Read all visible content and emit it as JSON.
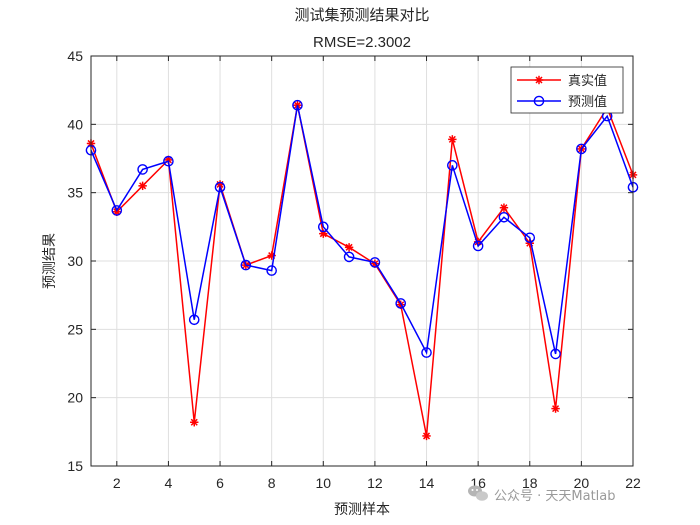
{
  "chart_data": {
    "type": "line",
    "title": "测试集预测结果对比",
    "subtitle": "RMSE=2.3002",
    "xlabel": "预测样本",
    "ylabel": "预测结果",
    "xlim": [
      1,
      22
    ],
    "ylim": [
      15,
      45
    ],
    "xticks": [
      2,
      4,
      6,
      8,
      10,
      12,
      14,
      16,
      18,
      20,
      22
    ],
    "yticks": [
      15,
      20,
      25,
      30,
      35,
      40,
      45
    ],
    "grid": true,
    "legend_position": "top-right",
    "x": [
      1,
      2,
      3,
      4,
      5,
      6,
      7,
      8,
      9,
      10,
      11,
      12,
      13,
      14,
      15,
      16,
      17,
      18,
      19,
      20,
      21,
      22
    ],
    "series": [
      {
        "name": "真实值",
        "color": "#ff0000",
        "marker": "asterisk",
        "values": [
          38.6,
          33.6,
          35.5,
          37.4,
          18.2,
          35.6,
          29.7,
          30.4,
          41.4,
          32.0,
          31.0,
          29.8,
          26.8,
          17.2,
          38.9,
          31.4,
          33.9,
          31.3,
          19.2,
          38.2,
          41.2,
          36.3
        ]
      },
      {
        "name": "预测值",
        "color": "#0000ff",
        "marker": "circle",
        "values": [
          38.1,
          33.7,
          36.7,
          37.3,
          25.7,
          35.4,
          29.7,
          29.3,
          41.4,
          32.5,
          30.3,
          29.9,
          26.9,
          23.3,
          37.0,
          31.1,
          33.2,
          31.7,
          23.2,
          38.2,
          40.6,
          35.4
        ]
      }
    ]
  },
  "watermark": {
    "icon": "wechat-icon",
    "text": "公众号 · 天天Matlab"
  }
}
